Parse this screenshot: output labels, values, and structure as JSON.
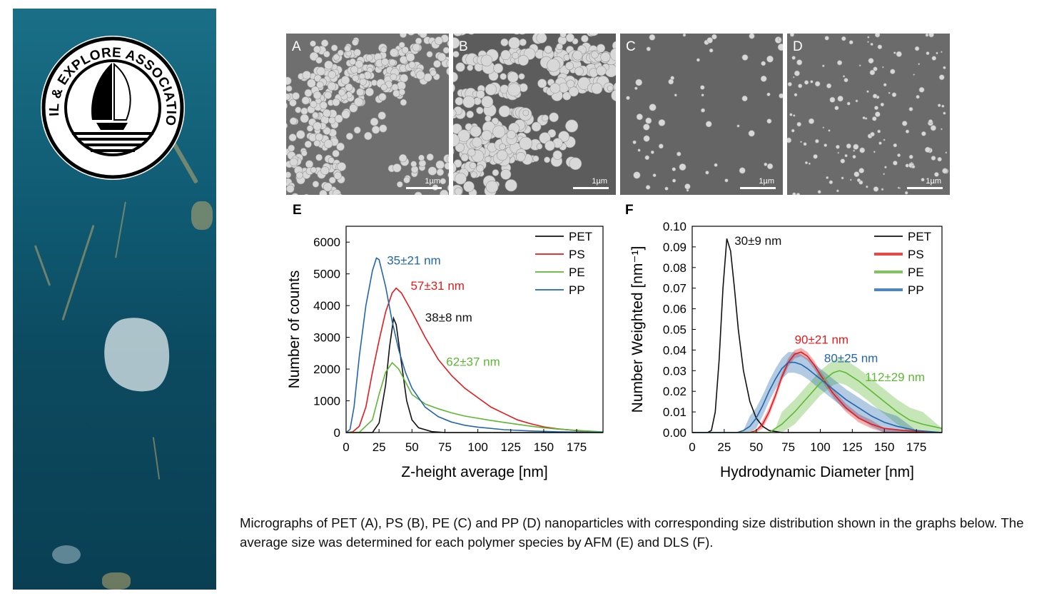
{
  "logo": {
    "text": "SAIL & EXPLORE ASSOCIATION"
  },
  "micrographs": [
    {
      "letter": "A",
      "scale": "1µm",
      "tone": "#6f6f6f"
    },
    {
      "letter": "B",
      "scale": "1µm",
      "tone": "#5c5c5c"
    },
    {
      "letter": "C",
      "scale": "1µm",
      "tone": "#656565"
    },
    {
      "letter": "D",
      "scale": "1µm",
      "tone": "#6b6b6b"
    }
  ],
  "colors": {
    "PET": "#111111",
    "PS": "#e41a1c",
    "PE": "#5cb832",
    "PP": "#2166ac"
  },
  "chart_data": [
    {
      "type": "line",
      "panel_label": "E",
      "xlabel": "Z-height average [nm]",
      "ylabel": "Number of counts",
      "xlim": [
        0,
        195
      ],
      "ylim": [
        0,
        6500
      ],
      "xticks": [
        "0",
        "25",
        "50",
        "75",
        "100",
        "125",
        "150",
        "175"
      ],
      "yticks": [
        "0",
        "1000",
        "2000",
        "3000",
        "4000",
        "5000",
        "6000"
      ],
      "legend_position": "top-right",
      "series": [
        {
          "name": "PET",
          "color": "#111111",
          "points": [
            [
              0,
              0
            ],
            [
              20,
              0
            ],
            [
              25,
              300
            ],
            [
              30,
              1500
            ],
            [
              33,
              2700
            ],
            [
              36,
              3600
            ],
            [
              38,
              3400
            ],
            [
              42,
              2200
            ],
            [
              46,
              1000
            ],
            [
              50,
              400
            ],
            [
              55,
              150
            ],
            [
              65,
              30
            ],
            [
              75,
              0
            ],
            [
              195,
              0
            ]
          ]
        },
        {
          "name": "PS",
          "color": "#e41a1c",
          "points": [
            [
              0,
              0
            ],
            [
              5,
              20
            ],
            [
              10,
              200
            ],
            [
              15,
              800
            ],
            [
              20,
              1900
            ],
            [
              25,
              2900
            ],
            [
              30,
              3800
            ],
            [
              35,
              4400
            ],
            [
              38,
              4550
            ],
            [
              42,
              4400
            ],
            [
              50,
              3800
            ],
            [
              60,
              3000
            ],
            [
              70,
              2300
            ],
            [
              80,
              1800
            ],
            [
              90,
              1400
            ],
            [
              100,
              1100
            ],
            [
              110,
              800
            ],
            [
              120,
              600
            ],
            [
              130,
              400
            ],
            [
              140,
              280
            ],
            [
              150,
              180
            ],
            [
              160,
              120
            ],
            [
              175,
              60
            ],
            [
              195,
              10
            ]
          ]
        },
        {
          "name": "PE",
          "color": "#5cb832",
          "points": [
            [
              0,
              0
            ],
            [
              10,
              10
            ],
            [
              20,
              400
            ],
            [
              25,
              1200
            ],
            [
              30,
              1900
            ],
            [
              35,
              2200
            ],
            [
              40,
              2000
            ],
            [
              45,
              1600
            ],
            [
              50,
              1200
            ],
            [
              60,
              900
            ],
            [
              70,
              750
            ],
            [
              80,
              620
            ],
            [
              90,
              520
            ],
            [
              100,
              450
            ],
            [
              110,
              380
            ],
            [
              120,
              320
            ],
            [
              130,
              260
            ],
            [
              140,
              200
            ],
            [
              150,
              150
            ],
            [
              160,
              110
            ],
            [
              175,
              70
            ],
            [
              195,
              20
            ]
          ]
        },
        {
          "name": "PP",
          "color": "#2166ac",
          "points": [
            [
              0,
              0
            ],
            [
              3,
              100
            ],
            [
              6,
              800
            ],
            [
              10,
              2400
            ],
            [
              15,
              4000
            ],
            [
              20,
              5100
            ],
            [
              23,
              5500
            ],
            [
              25,
              5450
            ],
            [
              30,
              4600
            ],
            [
              35,
              3500
            ],
            [
              40,
              2600
            ],
            [
              45,
              1900
            ],
            [
              50,
              1400
            ],
            [
              60,
              800
            ],
            [
              70,
              500
            ],
            [
              80,
              330
            ],
            [
              90,
              230
            ],
            [
              100,
              170
            ],
            [
              120,
              90
            ],
            [
              140,
              50
            ],
            [
              160,
              25
            ],
            [
              195,
              5
            ]
          ]
        }
      ],
      "annotations": [
        {
          "text": "35±21 nm",
          "series": "PP",
          "x": 31,
          "y": 5300
        },
        {
          "text": "57±31 nm",
          "series": "PS",
          "x": 49,
          "y": 4500
        },
        {
          "text": "38±8 nm",
          "series": "PET",
          "x": 60,
          "y": 3500
        },
        {
          "text": "62±37 nm",
          "series": "PE",
          "x": 76,
          "y": 2100
        }
      ]
    },
    {
      "type": "line",
      "panel_label": "F",
      "xlabel": "Hydrodynamic Diameter [nm]",
      "ylabel": "Number Weighted [nm⁻¹]",
      "xlim": [
        0,
        195
      ],
      "ylim": [
        0,
        0.1
      ],
      "xticks": [
        "0",
        "25",
        "50",
        "75",
        "100",
        "125",
        "150",
        "175"
      ],
      "yticks": [
        "0.00",
        "0.01",
        "0.02",
        "0.03",
        "0.04",
        "0.05",
        "0.06",
        "0.07",
        "0.08",
        "0.09",
        "0.10"
      ],
      "legend_position": "top-right",
      "series": [
        {
          "name": "PET",
          "color": "#111111",
          "band": 0,
          "points": [
            [
              0,
              0
            ],
            [
              12,
              0
            ],
            [
              15,
              0.001
            ],
            [
              18,
              0.01
            ],
            [
              21,
              0.035
            ],
            [
              24,
              0.07
            ],
            [
              27,
              0.094
            ],
            [
              30,
              0.088
            ],
            [
              33,
              0.07
            ],
            [
              36,
              0.05
            ],
            [
              40,
              0.03
            ],
            [
              45,
              0.015
            ],
            [
              50,
              0.007
            ],
            [
              55,
              0.003
            ],
            [
              60,
              0.001
            ],
            [
              70,
              0
            ],
            [
              195,
              0
            ]
          ]
        },
        {
          "name": "PS",
          "color": "#e41a1c",
          "band": 0.002,
          "points": [
            [
              0,
              0
            ],
            [
              45,
              0
            ],
            [
              50,
              0.001
            ],
            [
              55,
              0.004
            ],
            [
              60,
              0.01
            ],
            [
              65,
              0.018
            ],
            [
              70,
              0.027
            ],
            [
              75,
              0.034
            ],
            [
              80,
              0.038
            ],
            [
              85,
              0.039
            ],
            [
              90,
              0.037
            ],
            [
              95,
              0.033
            ],
            [
              100,
              0.028
            ],
            [
              110,
              0.019
            ],
            [
              120,
              0.012
            ],
            [
              130,
              0.007
            ],
            [
              140,
              0.004
            ],
            [
              150,
              0.002
            ],
            [
              165,
              0.001
            ],
            [
              195,
              0
            ]
          ]
        },
        {
          "name": "PE",
          "color": "#5cb832",
          "band": 0.006,
          "points": [
            [
              0,
              0
            ],
            [
              60,
              0
            ],
            [
              65,
              0.002
            ],
            [
              70,
              0.004
            ],
            [
              80,
              0.01
            ],
            [
              90,
              0.017
            ],
            [
              100,
              0.024
            ],
            [
              110,
              0.029
            ],
            [
              115,
              0.03
            ],
            [
              120,
              0.029
            ],
            [
              130,
              0.025
            ],
            [
              140,
              0.02
            ],
            [
              150,
              0.015
            ],
            [
              160,
              0.01
            ],
            [
              170,
              0.006
            ],
            [
              180,
              0.004
            ],
            [
              195,
              0.002
            ]
          ]
        },
        {
          "name": "PP",
          "color": "#2166ac",
          "band": 0.005,
          "points": [
            [
              0,
              0
            ],
            [
              35,
              0
            ],
            [
              40,
              0.001
            ],
            [
              45,
              0.003
            ],
            [
              50,
              0.007
            ],
            [
              55,
              0.013
            ],
            [
              60,
              0.02
            ],
            [
              65,
              0.026
            ],
            [
              70,
              0.031
            ],
            [
              75,
              0.034
            ],
            [
              80,
              0.034
            ],
            [
              85,
              0.033
            ],
            [
              90,
              0.031
            ],
            [
              100,
              0.026
            ],
            [
              110,
              0.021
            ],
            [
              120,
              0.016
            ],
            [
              130,
              0.012
            ],
            [
              140,
              0.008
            ],
            [
              150,
              0.005
            ],
            [
              160,
              0.003
            ],
            [
              175,
              0.001
            ],
            [
              195,
              0
            ]
          ]
        }
      ],
      "annotations": [
        {
          "text": "30±9 nm",
          "series": "PET",
          "x": 33,
          "y": 0.091
        },
        {
          "text": "90±21 nm",
          "series": "PS",
          "x": 80,
          "y": 0.043
        },
        {
          "text": "80±25 nm",
          "series": "PP",
          "x": 103,
          "y": 0.034
        },
        {
          "text": "112±29 nm",
          "series": "PE",
          "x": 135,
          "y": 0.025
        }
      ]
    }
  ],
  "caption": "Micrographs of PET (A), PS (B), PE (C) and PP (D) nanoparticles with corresponding size distribution shown in the graphs below. The average size was determined for each polymer species by AFM (E) and DLS (F)."
}
